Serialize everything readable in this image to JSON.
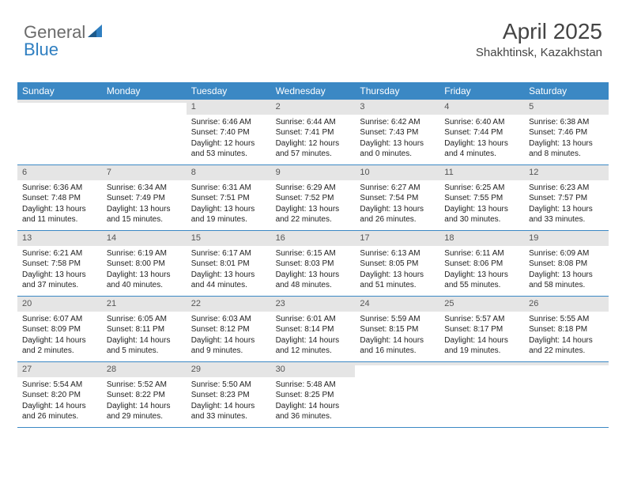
{
  "logo": {
    "text1": "General",
    "text2": "Blue",
    "accent_color": "#2f7fc1",
    "text1_color": "#6b6b6b"
  },
  "title": {
    "month": "April 2025",
    "location": "Shakhtinsk, Kazakhstan"
  },
  "colors": {
    "header_bg": "#3b88c4",
    "header_fg": "#ffffff",
    "daynum_bg": "#e5e5e5",
    "border": "#3b88c4"
  },
  "day_headers": [
    "Sunday",
    "Monday",
    "Tuesday",
    "Wednesday",
    "Thursday",
    "Friday",
    "Saturday"
  ],
  "weeks": [
    [
      {
        "empty": true
      },
      {
        "empty": true
      },
      {
        "day": "1",
        "sunrise": "Sunrise: 6:46 AM",
        "sunset": "Sunset: 7:40 PM",
        "daylight1": "Daylight: 12 hours",
        "daylight2": "and 53 minutes."
      },
      {
        "day": "2",
        "sunrise": "Sunrise: 6:44 AM",
        "sunset": "Sunset: 7:41 PM",
        "daylight1": "Daylight: 12 hours",
        "daylight2": "and 57 minutes."
      },
      {
        "day": "3",
        "sunrise": "Sunrise: 6:42 AM",
        "sunset": "Sunset: 7:43 PM",
        "daylight1": "Daylight: 13 hours",
        "daylight2": "and 0 minutes."
      },
      {
        "day": "4",
        "sunrise": "Sunrise: 6:40 AM",
        "sunset": "Sunset: 7:44 PM",
        "daylight1": "Daylight: 13 hours",
        "daylight2": "and 4 minutes."
      },
      {
        "day": "5",
        "sunrise": "Sunrise: 6:38 AM",
        "sunset": "Sunset: 7:46 PM",
        "daylight1": "Daylight: 13 hours",
        "daylight2": "and 8 minutes."
      }
    ],
    [
      {
        "day": "6",
        "sunrise": "Sunrise: 6:36 AM",
        "sunset": "Sunset: 7:48 PM",
        "daylight1": "Daylight: 13 hours",
        "daylight2": "and 11 minutes."
      },
      {
        "day": "7",
        "sunrise": "Sunrise: 6:34 AM",
        "sunset": "Sunset: 7:49 PM",
        "daylight1": "Daylight: 13 hours",
        "daylight2": "and 15 minutes."
      },
      {
        "day": "8",
        "sunrise": "Sunrise: 6:31 AM",
        "sunset": "Sunset: 7:51 PM",
        "daylight1": "Daylight: 13 hours",
        "daylight2": "and 19 minutes."
      },
      {
        "day": "9",
        "sunrise": "Sunrise: 6:29 AM",
        "sunset": "Sunset: 7:52 PM",
        "daylight1": "Daylight: 13 hours",
        "daylight2": "and 22 minutes."
      },
      {
        "day": "10",
        "sunrise": "Sunrise: 6:27 AM",
        "sunset": "Sunset: 7:54 PM",
        "daylight1": "Daylight: 13 hours",
        "daylight2": "and 26 minutes."
      },
      {
        "day": "11",
        "sunrise": "Sunrise: 6:25 AM",
        "sunset": "Sunset: 7:55 PM",
        "daylight1": "Daylight: 13 hours",
        "daylight2": "and 30 minutes."
      },
      {
        "day": "12",
        "sunrise": "Sunrise: 6:23 AM",
        "sunset": "Sunset: 7:57 PM",
        "daylight1": "Daylight: 13 hours",
        "daylight2": "and 33 minutes."
      }
    ],
    [
      {
        "day": "13",
        "sunrise": "Sunrise: 6:21 AM",
        "sunset": "Sunset: 7:58 PM",
        "daylight1": "Daylight: 13 hours",
        "daylight2": "and 37 minutes."
      },
      {
        "day": "14",
        "sunrise": "Sunrise: 6:19 AM",
        "sunset": "Sunset: 8:00 PM",
        "daylight1": "Daylight: 13 hours",
        "daylight2": "and 40 minutes."
      },
      {
        "day": "15",
        "sunrise": "Sunrise: 6:17 AM",
        "sunset": "Sunset: 8:01 PM",
        "daylight1": "Daylight: 13 hours",
        "daylight2": "and 44 minutes."
      },
      {
        "day": "16",
        "sunrise": "Sunrise: 6:15 AM",
        "sunset": "Sunset: 8:03 PM",
        "daylight1": "Daylight: 13 hours",
        "daylight2": "and 48 minutes."
      },
      {
        "day": "17",
        "sunrise": "Sunrise: 6:13 AM",
        "sunset": "Sunset: 8:05 PM",
        "daylight1": "Daylight: 13 hours",
        "daylight2": "and 51 minutes."
      },
      {
        "day": "18",
        "sunrise": "Sunrise: 6:11 AM",
        "sunset": "Sunset: 8:06 PM",
        "daylight1": "Daylight: 13 hours",
        "daylight2": "and 55 minutes."
      },
      {
        "day": "19",
        "sunrise": "Sunrise: 6:09 AM",
        "sunset": "Sunset: 8:08 PM",
        "daylight1": "Daylight: 13 hours",
        "daylight2": "and 58 minutes."
      }
    ],
    [
      {
        "day": "20",
        "sunrise": "Sunrise: 6:07 AM",
        "sunset": "Sunset: 8:09 PM",
        "daylight1": "Daylight: 14 hours",
        "daylight2": "and 2 minutes."
      },
      {
        "day": "21",
        "sunrise": "Sunrise: 6:05 AM",
        "sunset": "Sunset: 8:11 PM",
        "daylight1": "Daylight: 14 hours",
        "daylight2": "and 5 minutes."
      },
      {
        "day": "22",
        "sunrise": "Sunrise: 6:03 AM",
        "sunset": "Sunset: 8:12 PM",
        "daylight1": "Daylight: 14 hours",
        "daylight2": "and 9 minutes."
      },
      {
        "day": "23",
        "sunrise": "Sunrise: 6:01 AM",
        "sunset": "Sunset: 8:14 PM",
        "daylight1": "Daylight: 14 hours",
        "daylight2": "and 12 minutes."
      },
      {
        "day": "24",
        "sunrise": "Sunrise: 5:59 AM",
        "sunset": "Sunset: 8:15 PM",
        "daylight1": "Daylight: 14 hours",
        "daylight2": "and 16 minutes."
      },
      {
        "day": "25",
        "sunrise": "Sunrise: 5:57 AM",
        "sunset": "Sunset: 8:17 PM",
        "daylight1": "Daylight: 14 hours",
        "daylight2": "and 19 minutes."
      },
      {
        "day": "26",
        "sunrise": "Sunrise: 5:55 AM",
        "sunset": "Sunset: 8:18 PM",
        "daylight1": "Daylight: 14 hours",
        "daylight2": "and 22 minutes."
      }
    ],
    [
      {
        "day": "27",
        "sunrise": "Sunrise: 5:54 AM",
        "sunset": "Sunset: 8:20 PM",
        "daylight1": "Daylight: 14 hours",
        "daylight2": "and 26 minutes."
      },
      {
        "day": "28",
        "sunrise": "Sunrise: 5:52 AM",
        "sunset": "Sunset: 8:22 PM",
        "daylight1": "Daylight: 14 hours",
        "daylight2": "and 29 minutes."
      },
      {
        "day": "29",
        "sunrise": "Sunrise: 5:50 AM",
        "sunset": "Sunset: 8:23 PM",
        "daylight1": "Daylight: 14 hours",
        "daylight2": "and 33 minutes."
      },
      {
        "day": "30",
        "sunrise": "Sunrise: 5:48 AM",
        "sunset": "Sunset: 8:25 PM",
        "daylight1": "Daylight: 14 hours",
        "daylight2": "and 36 minutes."
      },
      {
        "empty": true
      },
      {
        "empty": true
      },
      {
        "empty": true
      }
    ]
  ]
}
